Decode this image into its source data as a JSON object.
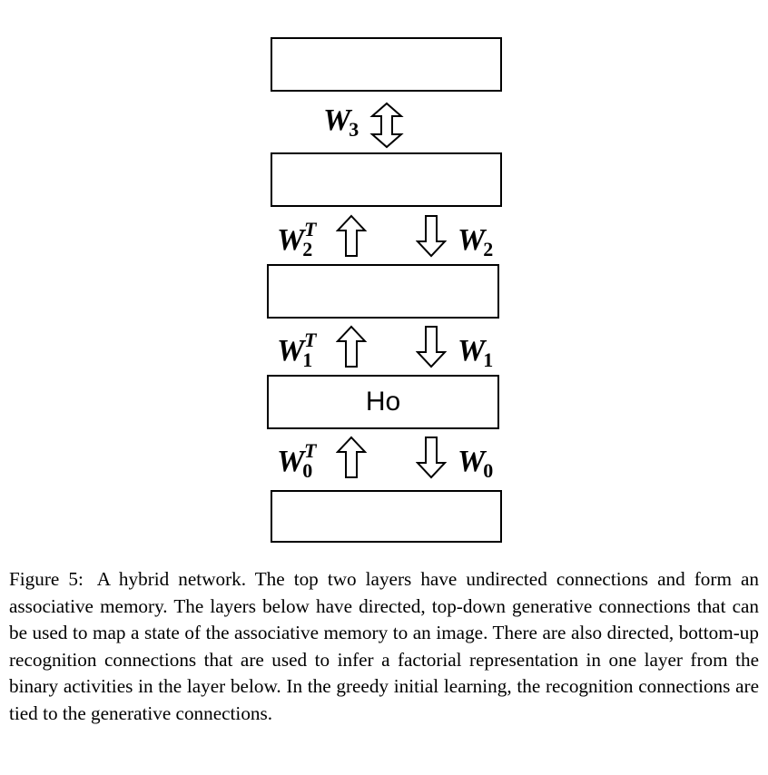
{
  "diagram": {
    "layers": [
      {
        "id": "top",
        "label": ""
      },
      {
        "id": "layer2",
        "label": ""
      },
      {
        "id": "layer1",
        "label": ""
      },
      {
        "id": "h0",
        "label": "Ho"
      },
      {
        "id": "bottom",
        "label": ""
      }
    ],
    "connections": {
      "w3": {
        "base": "W",
        "sub": "3",
        "type": "undirected"
      },
      "w2t": {
        "base": "W",
        "sub": "2",
        "sup": "T",
        "direction": "up"
      },
      "w2": {
        "base": "W",
        "sub": "2",
        "direction": "down"
      },
      "w1t": {
        "base": "W",
        "sub": "1",
        "sup": "T",
        "direction": "up"
      },
      "w1": {
        "base": "W",
        "sub": "1",
        "direction": "down"
      },
      "w0t": {
        "base": "W",
        "sub": "0",
        "sup": "T",
        "direction": "up"
      },
      "w0": {
        "base": "W",
        "sub": "0",
        "direction": "down"
      }
    }
  },
  "caption": {
    "label": "Figure 5:",
    "text": "A hybrid network. The top two layers have undirected connections and form an associative memory. The layers below have directed, top-down generative connections that can be used to map a state of the associative memory to an image. There are also directed, bottom-up recognition connections that are used to infer a factorial representation in one layer from the binary activities in the layer below. In the greedy initial learning, the recognition connections are tied to the generative connections."
  }
}
